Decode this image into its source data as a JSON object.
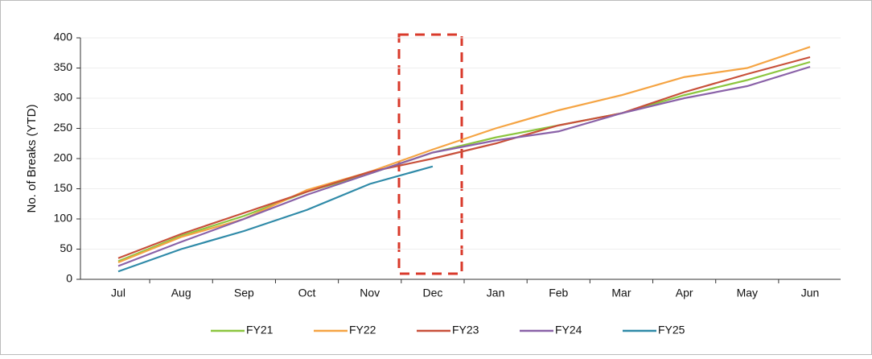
{
  "chart_data": {
    "type": "line",
    "y_label": "No. of Breaks (YTD)",
    "categories": [
      "Jul",
      "Aug",
      "Sep",
      "Oct",
      "Nov",
      "Dec",
      "Jan",
      "Feb",
      "Mar",
      "Apr",
      "May",
      "Jun"
    ],
    "series": [
      {
        "name": "FY21",
        "color": "#8cc63f",
        "values": [
          30,
          72,
          105,
          145,
          175,
          210,
          235,
          255,
          275,
          305,
          330,
          360
        ]
      },
      {
        "name": "FY22",
        "color": "#f5a443",
        "values": [
          28,
          70,
          100,
          148,
          178,
          215,
          250,
          280,
          305,
          335,
          350,
          385
        ]
      },
      {
        "name": "FY23",
        "color": "#c8503a",
        "values": [
          35,
          75,
          110,
          145,
          178,
          200,
          225,
          255,
          275,
          310,
          340,
          368
        ]
      },
      {
        "name": "FY24",
        "color": "#8a62a8",
        "values": [
          22,
          62,
          100,
          140,
          175,
          210,
          230,
          245,
          275,
          300,
          320,
          352
        ]
      },
      {
        "name": "FY25",
        "color": "#2f8aa8",
        "values": [
          13,
          50,
          80,
          115,
          158,
          187,
          null,
          null,
          null,
          null,
          null,
          null
        ]
      }
    ],
    "ylim": [
      0,
      400
    ],
    "yticks": [
      0,
      50,
      100,
      150,
      200,
      250,
      300,
      350,
      400
    ],
    "grid": true
  }
}
